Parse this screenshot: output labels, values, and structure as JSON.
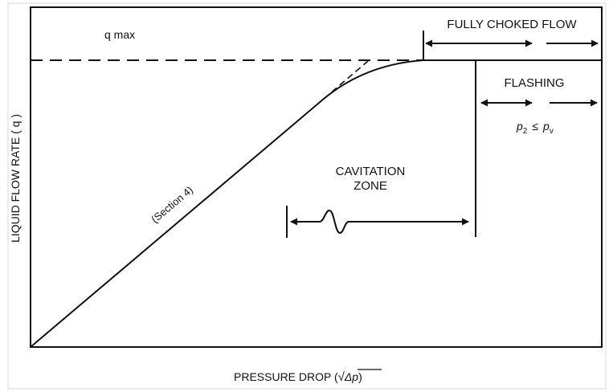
{
  "y_axis_label": "LIQUID FLOW RATE ( q )",
  "x_axis_label": "PRESSURE DROP (",
  "x_axis_sqrt_symbol": "√",
  "x_axis_delta_p": "Δp",
  "x_axis_close": ")",
  "q_max_label": "q max",
  "fully_choked_label": "FULLY CHOKED FLOW",
  "flashing_label": "FLASHING",
  "flashing_condition": {
    "p_symbol": "p",
    "p2_subscript": "2",
    "relation": "≤",
    "pv_symbol": "p",
    "pv_subscript": "v"
  },
  "cavitation_line1": "CAVITATION",
  "cavitation_line2": "ZONE",
  "section_label": "(Section 4)"
}
